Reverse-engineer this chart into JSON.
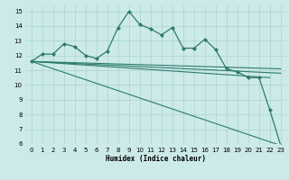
{
  "bg_color": "#cceae8",
  "grid_color": "#aad4d0",
  "line_color": "#2d7a6e",
  "xlabel": "Humidex (Indice chaleur)",
  "xlim": [
    -0.5,
    23.5
  ],
  "ylim": [
    6,
    15.4
  ],
  "yticks": [
    6,
    7,
    8,
    9,
    10,
    11,
    12,
    13,
    14,
    15
  ],
  "xticks": [
    0,
    1,
    2,
    3,
    4,
    5,
    6,
    7,
    8,
    9,
    10,
    11,
    12,
    13,
    14,
    15,
    16,
    17,
    18,
    19,
    20,
    21,
    22,
    23
  ],
  "main_series": {
    "x": [
      0,
      1,
      2,
      3,
      4,
      5,
      6,
      7,
      8,
      9,
      10,
      11,
      12,
      13,
      14,
      15,
      16,
      17,
      18,
      19,
      20,
      21,
      22,
      23
    ],
    "y": [
      11.6,
      12.1,
      12.1,
      12.8,
      12.6,
      12.0,
      11.8,
      12.3,
      13.9,
      15.0,
      14.1,
      13.8,
      13.4,
      13.9,
      12.5,
      12.5,
      13.1,
      12.4,
      11.1,
      10.9,
      10.5,
      10.5,
      8.3,
      5.9
    ]
  },
  "extra_lines": [
    {
      "x": [
        0,
        23
      ],
      "y": [
        11.6,
        11.1
      ]
    },
    {
      "x": [
        0,
        23
      ],
      "y": [
        11.6,
        10.8
      ]
    },
    {
      "x": [
        0,
        22
      ],
      "y": [
        11.6,
        10.5
      ]
    },
    {
      "x": [
        0,
        23
      ],
      "y": [
        11.6,
        5.9
      ]
    }
  ]
}
